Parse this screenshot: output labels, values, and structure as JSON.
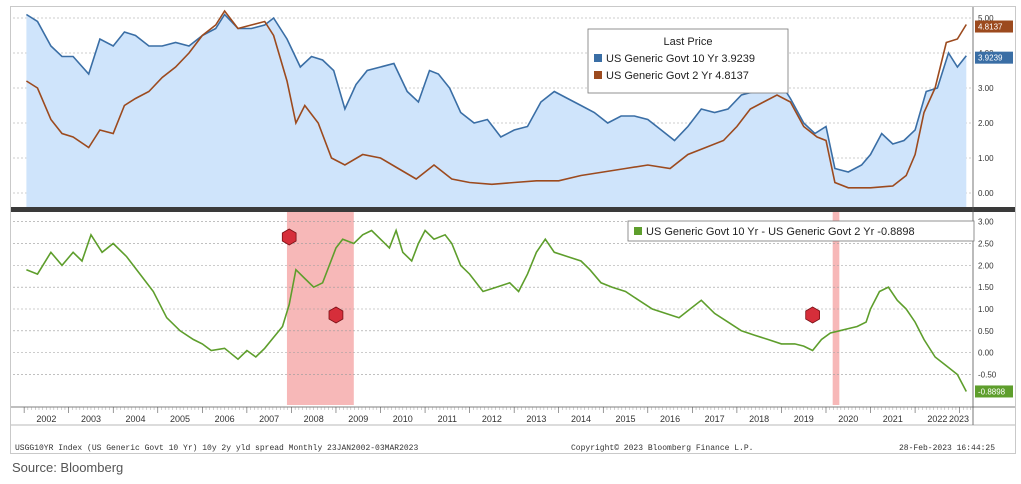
{
  "source": "Source: Bloomberg",
  "footer": {
    "left": "USGG10YR Index (US Generic Govt 10 Yr) 10y 2y yld spread  Monthly 23JAN2002-03MAR2023",
    "center": "Copyright© 2023 Bloomberg Finance L.P.",
    "right": "28-Feb-2023 16:44:25"
  },
  "colors": {
    "ten_year": "#3a6ea5",
    "two_year": "#9c4a1e",
    "area_fill": "#cfe4fb",
    "spread": "#5e9e2c",
    "recession": "#f4a0a0",
    "badge": "#d62e3a"
  },
  "chart_data": [
    {
      "type": "line",
      "title": "Last Price",
      "ylim": [
        -0.4,
        5.2
      ],
      "yticks": [
        "0.00",
        "1.00",
        "2.00",
        "3.00",
        "4.00",
        "5.00"
      ],
      "grid": true,
      "legend_position": "top-right",
      "series": [
        {
          "name": "US Generic Govt 10 Yr",
          "last_price": "3.9239",
          "x": [
            2002.05,
            2002.3,
            2002.6,
            2002.85,
            2003.1,
            2003.45,
            2003.7,
            2004.0,
            2004.25,
            2004.5,
            2004.8,
            2005.1,
            2005.4,
            2005.7,
            2006.0,
            2006.3,
            2006.5,
            2006.8,
            2007.1,
            2007.4,
            2007.6,
            2007.9,
            2008.2,
            2008.45,
            2008.7,
            2008.95,
            2009.2,
            2009.45,
            2009.7,
            2010.0,
            2010.3,
            2010.6,
            2010.85,
            2011.1,
            2011.3,
            2011.55,
            2011.8,
            2012.1,
            2012.4,
            2012.7,
            2013.0,
            2013.3,
            2013.6,
            2013.9,
            2014.2,
            2014.5,
            2014.8,
            2015.1,
            2015.4,
            2015.7,
            2016.0,
            2016.3,
            2016.6,
            2016.9,
            2017.2,
            2017.5,
            2017.8,
            2018.1,
            2018.4,
            2018.7,
            2018.95,
            2019.2,
            2019.5,
            2019.75,
            2020.0,
            2020.2,
            2020.5,
            2020.8,
            2021.0,
            2021.25,
            2021.5,
            2021.75,
            2022.0,
            2022.25,
            2022.5,
            2022.75,
            2022.95,
            2023.15
          ],
          "y": [
            5.1,
            4.9,
            4.2,
            3.9,
            3.9,
            3.4,
            4.4,
            4.2,
            4.6,
            4.5,
            4.2,
            4.2,
            4.3,
            4.2,
            4.5,
            4.7,
            5.1,
            4.7,
            4.7,
            4.8,
            5.0,
            4.4,
            3.6,
            3.9,
            3.8,
            3.5,
            2.4,
            3.1,
            3.5,
            3.6,
            3.7,
            2.9,
            2.6,
            3.5,
            3.4,
            3.0,
            2.3,
            2.0,
            2.1,
            1.6,
            1.8,
            1.9,
            2.6,
            2.9,
            2.7,
            2.5,
            2.3,
            2.0,
            2.2,
            2.2,
            2.1,
            1.8,
            1.5,
            1.9,
            2.4,
            2.3,
            2.4,
            2.8,
            2.9,
            3.0,
            3.2,
            2.7,
            2.0,
            1.7,
            1.9,
            0.7,
            0.6,
            0.8,
            1.1,
            1.7,
            1.4,
            1.5,
            1.8,
            2.9,
            3.0,
            4.0,
            3.6,
            3.9239
          ]
        },
        {
          "name": "US Generic Govt 2 Yr",
          "last_price": "4.8137",
          "x": [
            2002.05,
            2002.3,
            2002.6,
            2002.85,
            2003.1,
            2003.45,
            2003.7,
            2004.0,
            2004.25,
            2004.5,
            2004.8,
            2005.1,
            2005.4,
            2005.7,
            2006.0,
            2006.3,
            2006.5,
            2006.8,
            2007.1,
            2007.4,
            2007.6,
            2007.9,
            2008.1,
            2008.3,
            2008.6,
            2008.9,
            2009.2,
            2009.6,
            2010.0,
            2010.4,
            2010.8,
            2011.2,
            2011.6,
            2012.0,
            2012.5,
            2013.0,
            2013.5,
            2014.0,
            2014.5,
            2015.0,
            2015.5,
            2016.0,
            2016.5,
            2016.9,
            2017.3,
            2017.7,
            2018.0,
            2018.3,
            2018.6,
            2018.9,
            2019.2,
            2019.5,
            2019.8,
            2020.0,
            2020.2,
            2020.5,
            2021.0,
            2021.5,
            2021.8,
            2022.0,
            2022.2,
            2022.45,
            2022.7,
            2022.95,
            2023.15
          ],
          "y": [
            3.2,
            3.0,
            2.1,
            1.7,
            1.6,
            1.3,
            1.8,
            1.7,
            2.5,
            2.7,
            2.9,
            3.3,
            3.6,
            4.0,
            4.5,
            4.8,
            5.2,
            4.7,
            4.8,
            4.9,
            4.5,
            3.2,
            2.0,
            2.5,
            2.0,
            1.0,
            0.8,
            1.1,
            1.0,
            0.7,
            0.4,
            0.8,
            0.4,
            0.3,
            0.25,
            0.3,
            0.35,
            0.35,
            0.5,
            0.6,
            0.7,
            0.8,
            0.7,
            1.1,
            1.3,
            1.5,
            1.9,
            2.4,
            2.6,
            2.8,
            2.6,
            1.9,
            1.6,
            1.5,
            0.3,
            0.15,
            0.15,
            0.2,
            0.5,
            1.1,
            2.3,
            3.0,
            4.3,
            4.4,
            4.8137
          ]
        }
      ]
    },
    {
      "type": "line",
      "ylim": [
        -1.2,
        3.2
      ],
      "yticks": [
        "-0.50",
        "0.00",
        "0.50",
        "1.00",
        "1.50",
        "2.00",
        "2.50",
        "3.00"
      ],
      "grid": true,
      "legend_position": "top-right",
      "categories": [
        "2002",
        "2003",
        "2004",
        "2005",
        "2006",
        "2007",
        "2008",
        "2009",
        "2010",
        "2011",
        "2012",
        "2013",
        "2014",
        "2015",
        "2016",
        "2017",
        "2018",
        "2019",
        "2020",
        "2021",
        "2022",
        "2023"
      ],
      "recession_bands": [
        [
          2007.9,
          2009.4
        ],
        [
          2020.15,
          2020.3
        ]
      ],
      "inversion_markers": [
        2007.95,
        2009.0,
        2019.7
      ],
      "series": [
        {
          "name": "US Generic Govt 10 Yr - US Generic Govt 2 Yr",
          "last_price": "-0.8898",
          "x": [
            2002.05,
            2002.3,
            2002.6,
            2002.85,
            2003.1,
            2003.3,
            2003.5,
            2003.75,
            2004.0,
            2004.3,
            2004.6,
            2004.9,
            2005.2,
            2005.5,
            2005.8,
            2006.0,
            2006.2,
            2006.5,
            2006.8,
            2007.0,
            2007.2,
            2007.4,
            2007.6,
            2007.8,
            2007.95,
            2008.1,
            2008.3,
            2008.5,
            2008.7,
            2008.85,
            2009.0,
            2009.15,
            2009.4,
            2009.6,
            2009.8,
            2010.0,
            2010.2,
            2010.35,
            2010.5,
            2010.7,
            2010.85,
            2011.0,
            2011.2,
            2011.45,
            2011.6,
            2011.8,
            2012.0,
            2012.3,
            2012.6,
            2012.9,
            2013.1,
            2013.3,
            2013.5,
            2013.7,
            2013.9,
            2014.2,
            2014.5,
            2014.7,
            2014.95,
            2015.2,
            2015.5,
            2015.8,
            2016.1,
            2016.4,
            2016.7,
            2016.95,
            2017.2,
            2017.5,
            2017.8,
            2018.1,
            2018.4,
            2018.7,
            2019.0,
            2019.3,
            2019.5,
            2019.7,
            2019.9,
            2020.1,
            2020.3,
            2020.5,
            2020.7,
            2020.9,
            2021.0,
            2021.2,
            2021.4,
            2021.6,
            2021.8,
            2022.0,
            2022.2,
            2022.45,
            2022.7,
            2022.95,
            2023.15
          ],
          "y": [
            1.9,
            1.8,
            2.3,
            2.0,
            2.3,
            2.1,
            2.7,
            2.3,
            2.5,
            2.2,
            1.8,
            1.4,
            0.8,
            0.5,
            0.3,
            0.2,
            0.05,
            0.1,
            -0.15,
            0.05,
            -0.1,
            0.1,
            0.35,
            0.6,
            1.1,
            1.9,
            1.7,
            1.5,
            1.6,
            2.0,
            2.4,
            2.6,
            2.5,
            2.7,
            2.8,
            2.6,
            2.4,
            2.8,
            2.3,
            2.1,
            2.5,
            2.8,
            2.6,
            2.7,
            2.5,
            2.0,
            1.8,
            1.4,
            1.5,
            1.6,
            1.4,
            1.8,
            2.3,
            2.6,
            2.3,
            2.2,
            2.1,
            1.9,
            1.6,
            1.5,
            1.4,
            1.2,
            1.0,
            0.9,
            0.8,
            1.0,
            1.2,
            0.9,
            0.7,
            0.5,
            0.4,
            0.3,
            0.2,
            0.2,
            0.15,
            0.05,
            0.3,
            0.45,
            0.5,
            0.55,
            0.6,
            0.7,
            1.0,
            1.4,
            1.5,
            1.2,
            1.0,
            0.7,
            0.3,
            -0.1,
            -0.3,
            -0.5,
            -0.8898
          ]
        }
      ]
    }
  ]
}
